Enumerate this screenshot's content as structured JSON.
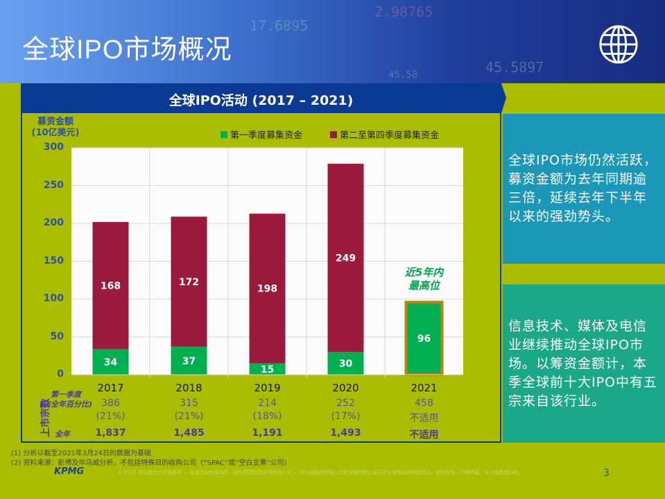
{
  "header": {
    "title": "全球IPO市场概况",
    "icon": "globe-icon"
  },
  "panel_title": "全球IPO活动 (2017 – 2021)",
  "chart_data": {
    "type": "bar",
    "stacked": true,
    "ylabel": "募资金额\n(10亿美元)",
    "ylim": [
      0,
      300
    ],
    "yticks": [
      0,
      50,
      100,
      150,
      200,
      250,
      300
    ],
    "categories": [
      "2017",
      "2018",
      "2019",
      "2020",
      "2021"
    ],
    "series": [
      {
        "name": "第一季度募集资金",
        "color": "#00b050",
        "values": [
          34,
          37,
          15,
          30,
          96
        ]
      },
      {
        "name": "第二至第四季度募集资金",
        "color": "#9b1b3f",
        "values": [
          168,
          172,
          198,
          249,
          null
        ]
      }
    ],
    "highlight": {
      "category": "2021",
      "border_color": "#b8860b",
      "annotation": "近5年内\n最高位"
    },
    "grid": true,
    "legend": "top-right"
  },
  "table": {
    "side_label": "上市宗数",
    "q1_label": "第一季度",
    "q1_sub_label": "(占全年百分比)",
    "fy_label": "全年",
    "q1_counts": [
      "386",
      "315",
      "214",
      "252",
      "458"
    ],
    "q1_pct": [
      "(21%)",
      "(21%)",
      "(18%)",
      "(17%)",
      "不适用"
    ],
    "full_year": [
      "1,837",
      "1,485",
      "1,191",
      "1,493",
      "不适用"
    ]
  },
  "side_boxes": [
    {
      "text": "全球IPO市场仍然活跃，募资金额为去年同期逾三倍，延续去年下半年以来的强劲势头。",
      "color": "#1b98b8"
    },
    {
      "text": "信息技术、媒体及电信业继续推动全球IPO市场。以筹资金额计，本季全球前十大IPO中有五宗来自该行业。",
      "color": "#1aa888"
    }
  ],
  "notes": [
    "(1)   分析以截至2021年3月24日的数据为基础",
    "(2)   资料来源：彭博及毕马威分析，不包括特殊目的收购公司（“SPAC”或“空白支票”公司）"
  ],
  "footer": {
    "logo": "KPMG",
    "copyright": "© 2021 毕马威会计师事务所 — 香港合伙制事务所，是与英国私营担保有限公司 — 毕马威国际有限公司相关联的独立成员所全球性组织中的成员。版权所有，不得转载。在中国香港印刷。",
    "page": "3"
  }
}
